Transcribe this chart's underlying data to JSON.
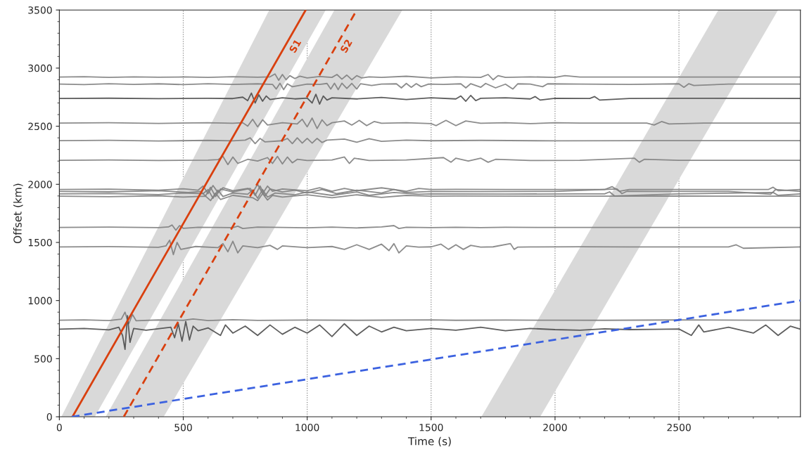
{
  "chart_data": {
    "type": "line",
    "xlabel": "Time (s)",
    "ylabel": "Offset (km)",
    "xlim": [
      0,
      2990
    ],
    "ylim": [
      0,
      3500
    ],
    "xticks": [
      0,
      500,
      1000,
      1500,
      2000,
      2500
    ],
    "yticks": [
      0,
      500,
      1000,
      1500,
      2000,
      2500,
      3000,
      3500
    ],
    "grid": "x",
    "legend": false,
    "series": [
      {
        "type": "area",
        "color": "#d9d9d9",
        "x": [
          8,
          847,
          1075,
          143
        ],
        "values": [
          0,
          3500,
          3500,
          0
        ]
      },
      {
        "type": "area",
        "color": "#d9d9d9",
        "x": [
          187,
          1110,
          1384,
          421
        ],
        "values": [
          0,
          3500,
          3500,
          0
        ]
      },
      {
        "type": "area",
        "color": "#d9d9d9",
        "x": [
          1703,
          2659,
          2900,
          1940
        ],
        "values": [
          0,
          3500,
          3500,
          0
        ]
      },
      {
        "color": "#7f7f7f",
        "x": [
          0,
          100,
          200,
          300,
          400,
          500,
          600,
          700,
          800,
          850,
          870,
          885,
          900,
          915,
          930,
          950,
          970,
          1000,
          1050,
          1100,
          1120,
          1140,
          1160,
          1180,
          1200,
          1220,
          1250,
          1300,
          1400,
          1500,
          1600,
          1700,
          1730,
          1750,
          1770,
          1800,
          1900,
          2000,
          2040,
          2100,
          2500,
          2990
        ],
        "values": [
          2923,
          2926,
          2920,
          2925,
          2921,
          2924,
          2920,
          2926,
          2921,
          2925,
          2950,
          2895,
          2945,
          2900,
          2935,
          2910,
          2930,
          2915,
          2928,
          2920,
          2945,
          2905,
          2940,
          2900,
          2935,
          2915,
          2925,
          2920,
          2930,
          2915,
          2925,
          2920,
          2945,
          2900,
          2935,
          2920,
          2925,
          2920,
          2935,
          2923,
          2923,
          2923
        ]
      },
      {
        "color": "#7f7f7f",
        "x": [
          0,
          100,
          200,
          300,
          400,
          500,
          600,
          700,
          800,
          860,
          875,
          890,
          905,
          920,
          940,
          1000,
          1050,
          1080,
          1095,
          1110,
          1125,
          1140,
          1160,
          1180,
          1200,
          1215,
          1260,
          1300,
          1360,
          1380,
          1400,
          1420,
          1440,
          1460,
          1490,
          1550,
          1620,
          1640,
          1660,
          1700,
          1720,
          1760,
          1800,
          1830,
          1850,
          1900,
          1950,
          1970,
          2100,
          2300,
          2500,
          2520,
          2540,
          2560,
          2700,
          2990
        ],
        "values": [
          2863,
          2858,
          2866,
          2860,
          2865,
          2858,
          2866,
          2860,
          2865,
          2860,
          2820,
          2870,
          2815,
          2865,
          2840,
          2862,
          2860,
          2868,
          2820,
          2870,
          2815,
          2870,
          2825,
          2868,
          2820,
          2865,
          2850,
          2862,
          2865,
          2830,
          2868,
          2835,
          2866,
          2840,
          2862,
          2860,
          2865,
          2830,
          2866,
          2835,
          2868,
          2830,
          2862,
          2820,
          2865,
          2862,
          2840,
          2865,
          2863,
          2860,
          2865,
          2835,
          2866,
          2850,
          2863,
          2863
        ]
      },
      {
        "color": "#4d4d4d",
        "x": [
          0,
          200,
          400,
          600,
          700,
          740,
          760,
          775,
          790,
          805,
          820,
          835,
          850,
          900,
          950,
          1000,
          1020,
          1035,
          1050,
          1065,
          1080,
          1100,
          1200,
          1300,
          1400,
          1500,
          1600,
          1620,
          1640,
          1660,
          1680,
          1700,
          1800,
          1900,
          1920,
          1940,
          2000,
          2140,
          2160,
          2180,
          2300,
          2500,
          2990
        ],
        "values": [
          2739,
          2741,
          2737,
          2740,
          2738,
          2750,
          2720,
          2785,
          2700,
          2770,
          2715,
          2760,
          2730,
          2745,
          2735,
          2742,
          2700,
          2775,
          2690,
          2760,
          2725,
          2745,
          2735,
          2748,
          2730,
          2745,
          2735,
          2760,
          2715,
          2765,
          2720,
          2740,
          2745,
          2735,
          2755,
          2725,
          2740,
          2739,
          2755,
          2725,
          2739,
          2740,
          2739
        ]
      },
      {
        "color": "#7f7f7f",
        "x": [
          0,
          200,
          400,
          600,
          700,
          740,
          760,
          780,
          800,
          820,
          840,
          900,
          960,
          980,
          1000,
          1020,
          1040,
          1060,
          1080,
          1100,
          1150,
          1180,
          1210,
          1240,
          1270,
          1300,
          1400,
          1500,
          1520,
          1560,
          1600,
          1640,
          1700,
          1800,
          1900,
          2000,
          2100,
          2370,
          2400,
          2430,
          2460,
          2600,
          2990
        ],
        "values": [
          2527,
          2530,
          2524,
          2530,
          2525,
          2530,
          2500,
          2560,
          2495,
          2555,
          2510,
          2530,
          2520,
          2560,
          2495,
          2570,
          2480,
          2555,
          2505,
          2530,
          2545,
          2510,
          2550,
          2505,
          2540,
          2525,
          2530,
          2522,
          2505,
          2550,
          2505,
          2545,
          2525,
          2530,
          2522,
          2530,
          2527,
          2527,
          2510,
          2540,
          2520,
          2527,
          2527
        ]
      },
      {
        "color": "#7f7f7f",
        "x": [
          0,
          200,
          400,
          600,
          700,
          750,
          770,
          790,
          810,
          830,
          900,
          920,
          940,
          960,
          980,
          1000,
          1020,
          1040,
          1060,
          1080,
          1150,
          1200,
          1250,
          1300,
          1400,
          1500,
          1700,
          2000,
          2400,
          2990
        ],
        "values": [
          2376,
          2379,
          2373,
          2378,
          2374,
          2380,
          2400,
          2350,
          2395,
          2365,
          2375,
          2395,
          2350,
          2400,
          2355,
          2395,
          2355,
          2395,
          2360,
          2380,
          2390,
          2362,
          2392,
          2370,
          2380,
          2375,
          2378,
          2374,
          2376,
          2376
        ]
      },
      {
        "color": "#7f7f7f",
        "x": [
          0,
          200,
          400,
          600,
          640,
          660,
          680,
          700,
          720,
          760,
          800,
          840,
          860,
          880,
          900,
          920,
          940,
          960,
          1000,
          1100,
          1150,
          1170,
          1190,
          1250,
          1400,
          1550,
          1580,
          1600,
          1650,
          1700,
          1730,
          1760,
          1900,
          2100,
          2320,
          2340,
          2360,
          2500,
          2990
        ],
        "values": [
          2207,
          2210,
          2205,
          2208,
          2212,
          2240,
          2170,
          2235,
          2180,
          2215,
          2200,
          2230,
          2180,
          2240,
          2175,
          2235,
          2185,
          2215,
          2205,
          2210,
          2235,
          2180,
          2225,
          2205,
          2210,
          2230,
          2190,
          2225,
          2200,
          2225,
          2190,
          2215,
          2205,
          2207,
          2225,
          2190,
          2215,
          2207,
          2207
        ]
      },
      {
        "color": "#7f7f7f",
        "x": [
          0,
          200,
          400,
          500,
          560,
          580,
          600,
          620,
          640,
          660,
          700,
          760,
          780,
          800,
          820,
          840,
          860,
          900,
          1000,
          1050,
          1100,
          1150,
          1200,
          1300,
          1400,
          1450,
          1500,
          1600,
          1800,
          2000,
          2200,
          2230,
          2260,
          2300,
          2500,
          2860,
          2880,
          2900,
          2990
        ],
        "values": [
          1955,
          1958,
          1950,
          1962,
          1950,
          1985,
          1920,
          1990,
          1930,
          1970,
          1945,
          1965,
          1930,
          2000,
          1920,
          1985,
          1940,
          1960,
          1945,
          1970,
          1940,
          1965,
          1945,
          1970,
          1940,
          1965,
          1955,
          1957,
          1955,
          1956,
          1955,
          1980,
          1940,
          1955,
          1955,
          1955,
          1975,
          1945,
          1955
        ]
      },
      {
        "color": "#7f7f7f",
        "x": [
          0,
          200,
          400,
          520,
          570,
          590,
          610,
          630,
          650,
          700,
          770,
          790,
          810,
          830,
          850,
          900,
          950,
          1000,
          1060,
          1120,
          1200,
          1300,
          1350,
          1400,
          1500,
          1700,
          2000,
          2250,
          2270,
          2290,
          2400,
          2700,
          2870,
          2890,
          2990
        ],
        "values": [
          1939,
          1935,
          1945,
          1930,
          1939,
          1900,
          1975,
          1895,
          1960,
          1935,
          1965,
          1905,
          1985,
          1900,
          1960,
          1935,
          1950,
          1925,
          1955,
          1920,
          1950,
          1925,
          1955,
          1930,
          1939,
          1937,
          1939,
          1960,
          1920,
          1940,
          1939,
          1939,
          1915,
          1955,
          1939
        ]
      },
      {
        "color": "#7f7f7f",
        "x": [
          0,
          200,
          400,
          500,
          580,
          600,
          620,
          640,
          660,
          700,
          760,
          780,
          800,
          820,
          840,
          870,
          950,
          1000,
          1100,
          1200,
          1250,
          1350,
          1450,
          1500,
          1800,
          2100,
          2200,
          2220,
          2240,
          2500,
          2880,
          2900,
          2990
        ],
        "values": [
          1918,
          1921,
          1912,
          1925,
          1920,
          1955,
          1880,
          1950,
          1895,
          1925,
          1915,
          1950,
          1880,
          1955,
          1890,
          1925,
          1910,
          1935,
          1905,
          1935,
          1905,
          1930,
          1915,
          1918,
          1916,
          1918,
          1918,
          1935,
          1900,
          1918,
          1930,
          1905,
          1918
        ]
      },
      {
        "color": "#7f7f7f",
        "x": [
          0,
          200,
          400,
          500,
          590,
          610,
          630,
          650,
          700,
          780,
          800,
          820,
          840,
          860,
          900,
          1000,
          1100,
          1200,
          1300,
          1400,
          1500,
          1600,
          2000,
          2300,
          2500,
          2990
        ],
        "values": [
          1898,
          1894,
          1902,
          1890,
          1898,
          1860,
          1925,
          1870,
          1905,
          1885,
          1860,
          1920,
          1865,
          1905,
          1890,
          1910,
          1885,
          1910,
          1888,
          1905,
          1898,
          1900,
          1898,
          1898,
          1899,
          1898
        ]
      },
      {
        "color": "#7f7f7f",
        "x": [
          0,
          200,
          400,
          440,
          455,
          470,
          485,
          500,
          560,
          700,
          720,
          740,
          800,
          1000,
          1100,
          1200,
          1300,
          1350,
          1370,
          1400,
          1500,
          1600,
          1700,
          1800,
          2000,
          2500,
          2990
        ],
        "values": [
          1629,
          1632,
          1627,
          1633,
          1650,
          1605,
          1645,
          1622,
          1630,
          1628,
          1640,
          1620,
          1632,
          1626,
          1632,
          1625,
          1633,
          1645,
          1620,
          1630,
          1628,
          1631,
          1627,
          1630,
          1629,
          1629,
          1629
        ]
      },
      {
        "color": "#7f7f7f",
        "x": [
          0,
          200,
          400,
          430,
          445,
          460,
          475,
          490,
          550,
          640,
          660,
          680,
          700,
          720,
          740,
          800,
          850,
          880,
          900,
          1000,
          1100,
          1150,
          1200,
          1250,
          1300,
          1330,
          1350,
          1370,
          1400,
          1450,
          1500,
          1540,
          1570,
          1600,
          1630,
          1660,
          1700,
          1750,
          1820,
          1835,
          1850,
          1900,
          2100,
          2300,
          2700,
          2730,
          2760,
          2990
        ],
        "values": [
          1461,
          1464,
          1458,
          1470,
          1520,
          1395,
          1500,
          1440,
          1465,
          1455,
          1490,
          1420,
          1510,
          1410,
          1470,
          1455,
          1475,
          1440,
          1470,
          1455,
          1465,
          1440,
          1480,
          1440,
          1485,
          1430,
          1490,
          1410,
          1470,
          1460,
          1462,
          1485,
          1440,
          1480,
          1440,
          1475,
          1460,
          1462,
          1490,
          1440,
          1460,
          1461,
          1463,
          1461,
          1461,
          1480,
          1450,
          1461
        ]
      },
      {
        "color": "#7f7f7f",
        "x": [
          0,
          100,
          200,
          250,
          265,
          280,
          295,
          310,
          400,
          500,
          540,
          600,
          700,
          800,
          1000,
          1200,
          1500,
          1600,
          1800,
          2000,
          2200,
          2500,
          2800,
          2990
        ],
        "values": [
          831,
          834,
          828,
          840,
          900,
          800,
          880,
          826,
          833,
          830,
          842,
          828,
          835,
          829,
          832,
          830,
          834,
          830,
          832,
          831,
          830,
          833,
          831,
          831
        ]
      },
      {
        "color": "#4d4d4d",
        "x": [
          0,
          100,
          200,
          240,
          255,
          265,
          275,
          285,
          300,
          350,
          450,
          465,
          480,
          495,
          510,
          525,
          540,
          560,
          600,
          650,
          670,
          700,
          750,
          800,
          850,
          900,
          950,
          1000,
          1050,
          1100,
          1150,
          1200,
          1250,
          1300,
          1350,
          1400,
          1500,
          1600,
          1700,
          1800,
          1900,
          2000,
          2100,
          2200,
          2300,
          2400,
          2500,
          2550,
          2580,
          2600,
          2700,
          2800,
          2850,
          2900,
          2950,
          2990
        ],
        "values": [
          754,
          760,
          748,
          770,
          700,
          580,
          870,
          640,
          760,
          745,
          770,
          680,
          800,
          650,
          820,
          660,
          780,
          740,
          765,
          700,
          790,
          720,
          780,
          700,
          790,
          710,
          770,
          720,
          790,
          690,
          800,
          700,
          780,
          730,
          770,
          740,
          760,
          745,
          770,
          740,
          760,
          750,
          745,
          757,
          750,
          752,
          755,
          700,
          790,
          730,
          770,
          720,
          790,
          700,
          780,
          754
        ]
      },
      {
        "name": "S1",
        "color": "#d9400f",
        "line_style": "solid",
        "x": [
          53,
          994
        ],
        "values": [
          0,
          3500
        ]
      },
      {
        "name": "S2",
        "color": "#d9400f",
        "line_style": "dashed",
        "x": [
          260,
          1200
        ],
        "values": [
          0,
          3500
        ]
      },
      {
        "color": "#3c62e0",
        "line_style": "dashed",
        "x": [
          50,
          2990
        ],
        "values": [
          0,
          1000
        ]
      }
    ]
  }
}
